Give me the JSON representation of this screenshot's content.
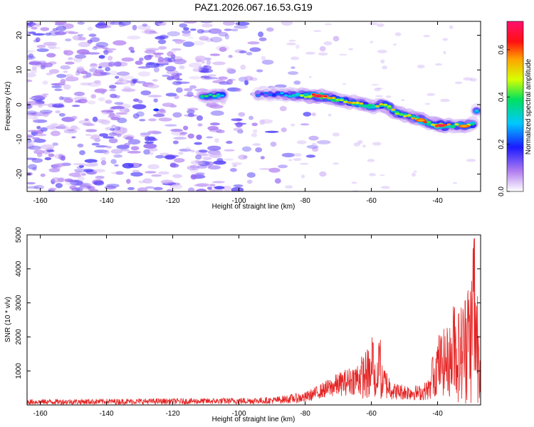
{
  "figure_title": "PAZ1.2026.067.16.53.G19",
  "chart_data": [
    {
      "type": "heatmap",
      "xlabel": "Height of straight line (km)",
      "ylabel": "Frequency (Hz)",
      "xlim": [
        -164,
        -27
      ],
      "ylim": [
        -25,
        24
      ],
      "xticks": [
        -160,
        -140,
        -120,
        -100,
        -80,
        -60,
        -40
      ],
      "yticks": [
        -20,
        -10,
        0,
        10,
        20
      ],
      "colorbar": {
        "label": "Normalized spectral amplitude",
        "range": [
          0.0,
          0.72
        ],
        "ticks": [
          0.0,
          0.2,
          0.4,
          0.6
        ],
        "tick_labels": [
          "0.0",
          "0.2",
          "0.4",
          "0.6"
        ]
      },
      "ridge": {
        "description": "dominant signal band",
        "points": [
          {
            "x": -111,
            "y": 2.5,
            "v": 0.35
          },
          {
            "x": -107,
            "y": 2.5,
            "v": 0.4
          },
          {
            "x": -93,
            "y": 3.0,
            "v": 0.2
          },
          {
            "x": -88,
            "y": 3.0,
            "v": 0.25
          },
          {
            "x": -85,
            "y": 2.8,
            "v": 0.3
          },
          {
            "x": -80,
            "y": 2.6,
            "v": 0.45
          },
          {
            "x": -76,
            "y": 2.5,
            "v": 0.72
          },
          {
            "x": -70,
            "y": 1.5,
            "v": 0.45
          },
          {
            "x": -65,
            "y": 0.5,
            "v": 0.5
          },
          {
            "x": -60,
            "y": -0.5,
            "v": 0.4
          },
          {
            "x": -56,
            "y": 0.0,
            "v": 0.5
          },
          {
            "x": -52,
            "y": -2.5,
            "v": 0.5
          },
          {
            "x": -48,
            "y": -3.5,
            "v": 0.45
          },
          {
            "x": -45,
            "y": -4.5,
            "v": 0.55
          },
          {
            "x": -42,
            "y": -5.5,
            "v": 0.5
          },
          {
            "x": -39,
            "y": -6.0,
            "v": 0.72
          },
          {
            "x": -35,
            "y": -6.0,
            "v": 0.4
          },
          {
            "x": -32,
            "y": -6.2,
            "v": 0.55
          },
          {
            "x": -29,
            "y": -5.5,
            "v": 0.35
          },
          {
            "x": -28,
            "y": -1.0,
            "v": 0.3
          }
        ]
      },
      "noise_background": {
        "x_range": [
          -164,
          -85
        ],
        "level": 0.08
      }
    },
    {
      "type": "line",
      "xlabel": "Height of straight line (km)",
      "ylabel": "SNR (10 * v/v)",
      "xlim": [
        -164,
        -27
      ],
      "ylim": [
        0,
        5000
      ],
      "xticks": [
        -160,
        -140,
        -120,
        -100,
        -80,
        -60,
        -40
      ],
      "yticks": [
        1000,
        2000,
        3000,
        4000,
        5000
      ],
      "series": [
        {
          "name": "SNR",
          "color": "#e52525",
          "envelope": [
            {
              "x": -164,
              "mean": 90,
              "amp": 80
            },
            {
              "x": -110,
              "mean": 110,
              "amp": 90
            },
            {
              "x": -90,
              "mean": 130,
              "amp": 100
            },
            {
              "x": -80,
              "mean": 220,
              "amp": 160
            },
            {
              "x": -76,
              "mean": 380,
              "amp": 200
            },
            {
              "x": -70,
              "mean": 600,
              "amp": 350
            },
            {
              "x": -65,
              "mean": 750,
              "amp": 450
            },
            {
              "x": -61,
              "mean": 900,
              "amp": 800
            },
            {
              "x": -59,
              "mean": 700,
              "amp": 600
            },
            {
              "x": -56,
              "mean": 650,
              "amp": 500
            },
            {
              "x": -53,
              "mean": 400,
              "amp": 250
            },
            {
              "x": -45,
              "mean": 350,
              "amp": 220
            },
            {
              "x": -42,
              "mean": 500,
              "amp": 350
            },
            {
              "x": -40,
              "mean": 1200,
              "amp": 900
            },
            {
              "x": -36,
              "mean": 1300,
              "amp": 1100
            },
            {
              "x": -33,
              "mean": 1500,
              "amp": 1500
            },
            {
              "x": -30,
              "mean": 2000,
              "amp": 2000
            },
            {
              "x": -28.5,
              "mean": 2300,
              "amp": 2700
            },
            {
              "x": -27,
              "mean": 1200,
              "amp": 800
            }
          ],
          "peaks": [
            {
              "x": -59.5,
              "y": 2050
            },
            {
              "x": -57.5,
              "y": 1950
            },
            {
              "x": -41.5,
              "y": 1450
            },
            {
              "x": -35,
              "y": 3050
            },
            {
              "x": -31,
              "y": 3400
            },
            {
              "x": -29,
              "y": 5000
            }
          ]
        }
      ]
    }
  ]
}
